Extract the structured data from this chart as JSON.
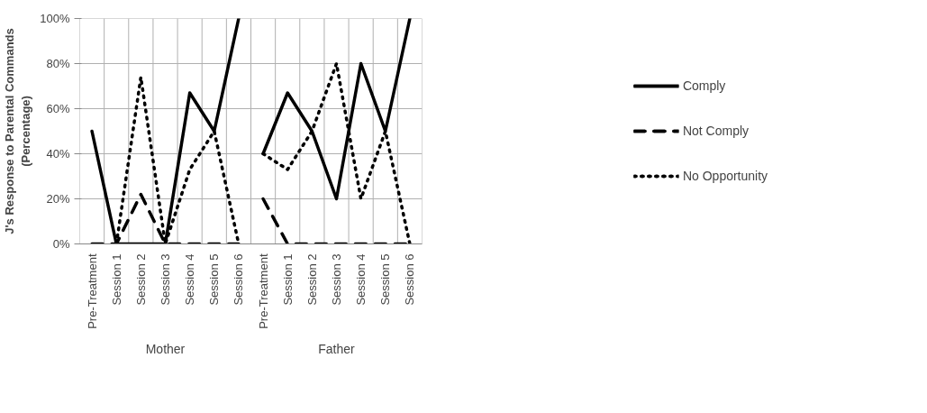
{
  "chart_data": [
    {
      "type": "line",
      "xlabel": "Mother",
      "ylabel": "J's Response to Parental Commands (Percentage)",
      "categories": [
        "Pre-Treatment",
        "Session 1",
        "Session 2",
        "Session 3",
        "Session 4",
        "Session 5",
        "Session 6"
      ],
      "ylim": [
        0,
        100
      ],
      "yticks": [
        {
          "value": 0,
          "label": "0%"
        },
        {
          "value": 20,
          "label": "20%"
        },
        {
          "value": 40,
          "label": "40%"
        },
        {
          "value": 60,
          "label": "60%"
        },
        {
          "value": 80,
          "label": "80%"
        },
        {
          "value": 100,
          "label": "100%"
        }
      ],
      "grid": true,
      "legend": "right",
      "series": [
        {
          "name": "Comply",
          "color": "#000000",
          "line_style": "solid",
          "values": [
            50,
            0,
            0,
            0,
            67,
            50,
            100
          ]
        },
        {
          "name": "Not Comply",
          "color": "#000000",
          "line_style": "dashed",
          "values": [
            0,
            0,
            22,
            0,
            0,
            0,
            0
          ]
        },
        {
          "name": "No Opportunity",
          "color": "#000000",
          "line_style": "dotted",
          "values": [
            null,
            0,
            74,
            0,
            33,
            50,
            0
          ]
        }
      ]
    },
    {
      "type": "line",
      "xlabel": "Father",
      "categories": [
        "Pre-Treatment",
        "Session 1",
        "Session 2",
        "Session 3",
        "Session 4",
        "Session 5",
        "Session 6"
      ],
      "ylim": [
        0,
        100
      ],
      "yticks": [
        0,
        20,
        40,
        60,
        80,
        100
      ],
      "tick_labels": "x",
      "grid": true,
      "series": [
        {
          "color": "#000000",
          "line_style": "solid",
          "values": [
            40,
            67,
            50,
            20,
            80,
            50,
            100
          ]
        },
        {
          "color": "#000000",
          "line_style": "dashed",
          "values": [
            20,
            0,
            0,
            0,
            0,
            0,
            0
          ]
        },
        {
          "color": "#000000",
          "line_style": "dotted",
          "values": [
            40,
            33,
            50,
            80,
            20,
            50,
            0
          ]
        }
      ]
    }
  ]
}
